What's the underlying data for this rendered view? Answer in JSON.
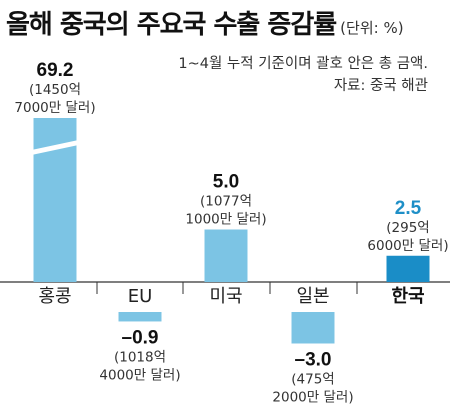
{
  "header": {
    "title": "올해 중국의 주요국 수출 증감률",
    "unit": "(단위: %)",
    "subtitle": "1~4월 누적 기준이며 괄호 안은 총 금액.",
    "source": "자료: 중국 해관"
  },
  "colors": {
    "bar": "#7cc4e4",
    "highlight_bar": "#1a8dc7",
    "highlight_text": "#1e8fc7",
    "axis": "#333333"
  },
  "chart_data": {
    "type": "bar",
    "title": "올해 중국의 주요국 수출 증감률",
    "ylabel": "(단위: %)",
    "axis_break": "홍콩",
    "categories": [
      "홍콩",
      "EU",
      "미국",
      "일본",
      "한국"
    ],
    "highlight": "한국",
    "series": [
      {
        "values": [
          69.2,
          -0.9,
          5.0,
          -3.0,
          2.5
        ]
      }
    ],
    "value_labels": [
      "69.2",
      "–0.9",
      "5.0",
      "–3.0",
      "2.5"
    ],
    "amount_labels": [
      [
        "(1450억",
        "7000만 달러)"
      ],
      [
        "(1018억",
        "4000만 달러)"
      ],
      [
        "(1077억",
        "1000만 달러)"
      ],
      [
        "(475억",
        "2000만 달러)"
      ],
      [
        "(295억",
        "6000만 달러)"
      ]
    ]
  }
}
